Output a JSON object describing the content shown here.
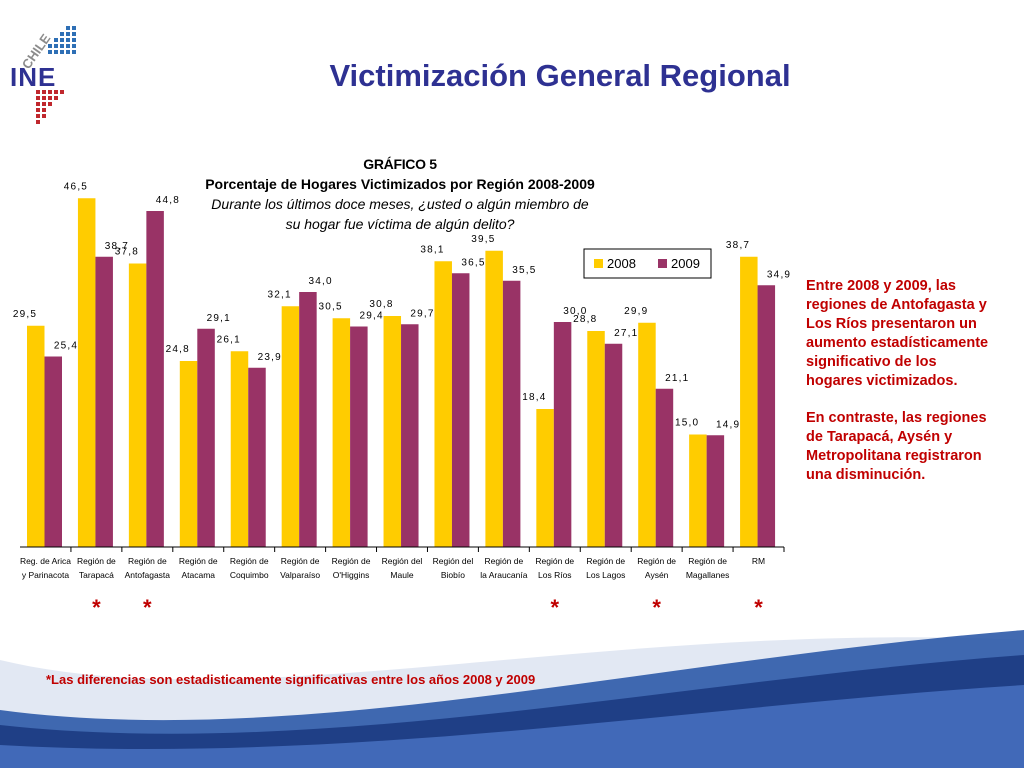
{
  "logo": {
    "country": "CHILE",
    "org": "INE"
  },
  "slide": {
    "title": "Victimización General Regional"
  },
  "chart_head": {
    "label": "GRÁFICO 5",
    "subtitle": "Porcentaje de Hogares Victimizados por Región 2008-2009",
    "question_1": "Durante los últimos doce meses, ¿usted o algún miembro de",
    "question_2": "su hogar fue víctima de algún delito?"
  },
  "side_note": {
    "p1": "Entre 2008 y 2009, las regiones de Antofagasta y Los Ríos presentaron un aumento estadísticamente significativo de los hogares victimizados.",
    "p2": "En contraste, las regiones de Tarapacá, Aysén y Metropolitana registraron una disminución."
  },
  "footnote": "*Las diferencias son estadisticamente significativas entre los años 2008 y 2009",
  "colors": {
    "s2008": "#ffcc00",
    "s2009": "#993366",
    "title": "#2e3192",
    "note": "#c00000"
  },
  "chart_data": {
    "type": "bar",
    "categories": [
      [
        "Reg. de Arica",
        "y Parinacota"
      ],
      [
        "Región de",
        "Tarapacá"
      ],
      [
        "Región de",
        "Antofagasta"
      ],
      [
        "Región de",
        "Atacama"
      ],
      [
        "Región de",
        "Coquimbo"
      ],
      [
        "Región de",
        "Valparaíso"
      ],
      [
        "Región de",
        "O'Higgins"
      ],
      [
        "Región del",
        "Maule"
      ],
      [
        "Región del",
        "Biobío"
      ],
      [
        "Región de",
        "la Araucanía"
      ],
      [
        "Región de",
        "Los Ríos"
      ],
      [
        "Región de",
        "Los Lagos"
      ],
      [
        "Región de",
        "Aysén"
      ],
      [
        "Región de",
        "Magallanes"
      ],
      [
        "RM",
        ""
      ]
    ],
    "series": [
      {
        "name": "2008",
        "values": [
          29.5,
          46.5,
          37.8,
          24.8,
          26.1,
          32.1,
          30.5,
          30.8,
          38.1,
          39.5,
          18.4,
          28.8,
          29.9,
          15.0,
          38.7
        ]
      },
      {
        "name": "2009",
        "values": [
          25.4,
          38.7,
          44.8,
          29.1,
          23.9,
          34.0,
          29.4,
          29.7,
          36.5,
          35.5,
          30.0,
          27.1,
          21.1,
          14.9,
          34.9
        ]
      }
    ],
    "value_labels_2008": [
      "29,5",
      "46,5",
      "37,8",
      "24,8",
      "26,1",
      "32,1",
      "30,5",
      "30,8",
      "38,1",
      "39,5",
      "18,4",
      "28,8",
      "29,9",
      "15,0",
      "38,7"
    ],
    "value_labels_2009": [
      "25,4",
      "38,7",
      "44,8",
      "29,1",
      "23,9",
      "34,0",
      "29,4",
      "29,7",
      "36,5",
      "35,5",
      "30,0",
      "27,1",
      "21,1",
      "14,9",
      "34,9"
    ],
    "significant": [
      false,
      true,
      true,
      false,
      false,
      false,
      false,
      false,
      false,
      false,
      true,
      false,
      true,
      false,
      true
    ],
    "significance_marker": "*",
    "ylim": [
      0,
      50
    ],
    "legend_position": "top-right",
    "grid": false
  }
}
